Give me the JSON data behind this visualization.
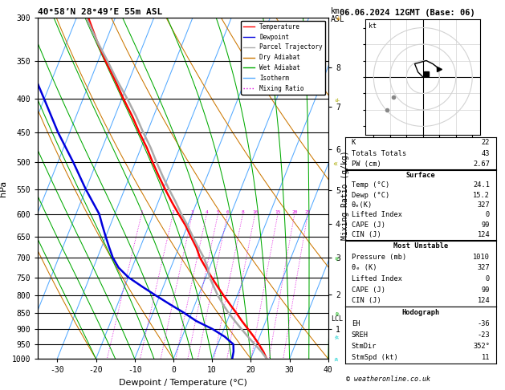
{
  "title_left": "40°58’N 28°49’E 55m ASL",
  "title_right": "06.06.2024 12GMT (Base: 06)",
  "xlabel": "Dewpoint / Temperature (°C)",
  "ylabel_left": "hPa",
  "pressure_levels": [
    300,
    350,
    400,
    450,
    500,
    550,
    600,
    650,
    700,
    750,
    800,
    850,
    900,
    950,
    1000
  ],
  "xlim": [
    -35,
    40
  ],
  "xticks": [
    -30,
    -20,
    -10,
    0,
    10,
    20,
    30,
    40
  ],
  "pmin": 300,
  "pmax": 1000,
  "temp_profile": {
    "pressure": [
      1000,
      975,
      950,
      925,
      900,
      875,
      850,
      825,
      800,
      775,
      750,
      725,
      700,
      675,
      650,
      625,
      600,
      575,
      550,
      525,
      500,
      475,
      450,
      425,
      400,
      375,
      350,
      325,
      300
    ],
    "temp": [
      24.1,
      22.5,
      20.6,
      18.5,
      16.2,
      13.8,
      11.5,
      9.0,
      6.5,
      4.0,
      1.5,
      -1.0,
      -3.5,
      -5.5,
      -8.0,
      -10.5,
      -13.5,
      -16.5,
      -19.5,
      -22.5,
      -25.5,
      -28.5,
      -32.0,
      -35.5,
      -39.5,
      -43.5,
      -48.0,
      -52.5,
      -57.0
    ],
    "color": "#ff0000",
    "linewidth": 1.8
  },
  "dewpoint_profile": {
    "pressure": [
      1000,
      975,
      950,
      925,
      900,
      875,
      850,
      825,
      800,
      775,
      750,
      725,
      700,
      675,
      650,
      625,
      600,
      550,
      500,
      450,
      400,
      350,
      300
    ],
    "temp": [
      15.2,
      14.8,
      14.0,
      11.0,
      7.0,
      2.0,
      -2.0,
      -6.5,
      -11.0,
      -15.5,
      -20.0,
      -23.5,
      -26.0,
      -28.0,
      -30.0,
      -32.0,
      -34.0,
      -40.0,
      -46.0,
      -53.0,
      -60.0,
      -68.0,
      -76.0
    ],
    "color": "#0000dd",
    "linewidth": 1.8
  },
  "parcel_profile": {
    "pressure": [
      1000,
      975,
      950,
      925,
      900,
      875,
      850,
      825,
      800,
      775,
      750,
      725,
      700,
      675,
      650,
      625,
      600,
      575,
      550,
      525,
      500,
      475,
      450,
      425,
      400,
      375,
      350,
      325,
      300
    ],
    "temp": [
      24.1,
      22.0,
      19.5,
      17.0,
      14.5,
      12.0,
      9.5,
      7.2,
      5.0,
      3.0,
      1.0,
      -0.5,
      -2.5,
      -5.0,
      -7.5,
      -10.0,
      -12.8,
      -15.5,
      -18.5,
      -21.5,
      -24.5,
      -27.5,
      -31.0,
      -34.5,
      -38.5,
      -43.0,
      -47.5,
      -52.5,
      -57.5
    ],
    "color": "#aaaaaa",
    "linewidth": 1.8
  },
  "background_color": "#ffffff",
  "isotherm_color": "#55aaff",
  "dry_adiabat_color": "#cc7700",
  "wet_adiabat_color": "#00aa00",
  "mixing_ratio_color": "#dd00dd",
  "km_labels": [
    1,
    2,
    3,
    4,
    5,
    6,
    7,
    8
  ],
  "km_pressures": [
    899,
    798,
    700,
    621,
    551,
    477,
    411,
    358
  ],
  "lcl_pressure": 870,
  "mixing_ratio_values": [
    1,
    2,
    3,
    4,
    5,
    6,
    8,
    10,
    15,
    20,
    25
  ],
  "mixing_ratio_label_pressure": 600,
  "info_K": 22,
  "info_TT": 43,
  "info_PW": "2.67",
  "surface_temp": "24.1",
  "surface_dewp": "15.2",
  "surface_theta_e": 327,
  "surface_lifted_index": 0,
  "surface_CAPE": 99,
  "surface_CIN": 124,
  "mu_pressure": 1010,
  "mu_theta_e": 327,
  "mu_lifted_index": 0,
  "mu_CAPE": 99,
  "mu_CIN": 124,
  "hodo_EH": -36,
  "hodo_SREH": -23,
  "hodo_StmDir": 352,
  "hodo_StmSpd": 11,
  "legend_entries": [
    "Temperature",
    "Dewpoint",
    "Parcel Trajectory",
    "Dry Adiabat",
    "Wet Adiabat",
    "Isotherm",
    "Mixing Ratio"
  ],
  "legend_colors": [
    "#ff0000",
    "#0000dd",
    "#aaaaaa",
    "#cc7700",
    "#00aa00",
    "#55aaff",
    "#dd00dd"
  ],
  "legend_styles": [
    "solid",
    "solid",
    "solid",
    "solid",
    "solid",
    "solid",
    "dotted"
  ],
  "copyright": "© weatheronline.co.uk",
  "skew": 35.0,
  "wind_pressures": [
    1000,
    925,
    850,
    700,
    500,
    400,
    300
  ],
  "wind_speeds": [
    5,
    8,
    15,
    20,
    25,
    30,
    35
  ],
  "wind_directions": [
    180,
    190,
    200,
    230,
    270,
    300,
    320
  ]
}
